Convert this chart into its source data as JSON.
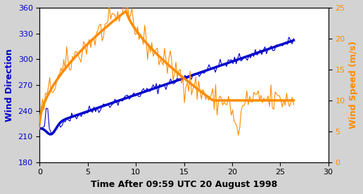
{
  "title": "Time After 09:59 UTC 20 August 1998",
  "ylabel_left": "Wind Direction",
  "ylabel_right": "Wind Speed (m/s)",
  "xlim": [
    0,
    30
  ],
  "ylim_left": [
    180,
    360
  ],
  "ylim_right": [
    0,
    25
  ],
  "xticks": [
    0,
    5,
    10,
    15,
    20,
    25,
    30
  ],
  "yticks_left": [
    180,
    210,
    240,
    270,
    300,
    330,
    360
  ],
  "yticks_right": [
    0,
    5,
    10,
    15,
    20,
    25
  ],
  "color_blue": "#0000CC",
  "color_orange": "#FF8C00",
  "bg_color": "#D3D3D3",
  "plot_bg": "#FFFFFF"
}
